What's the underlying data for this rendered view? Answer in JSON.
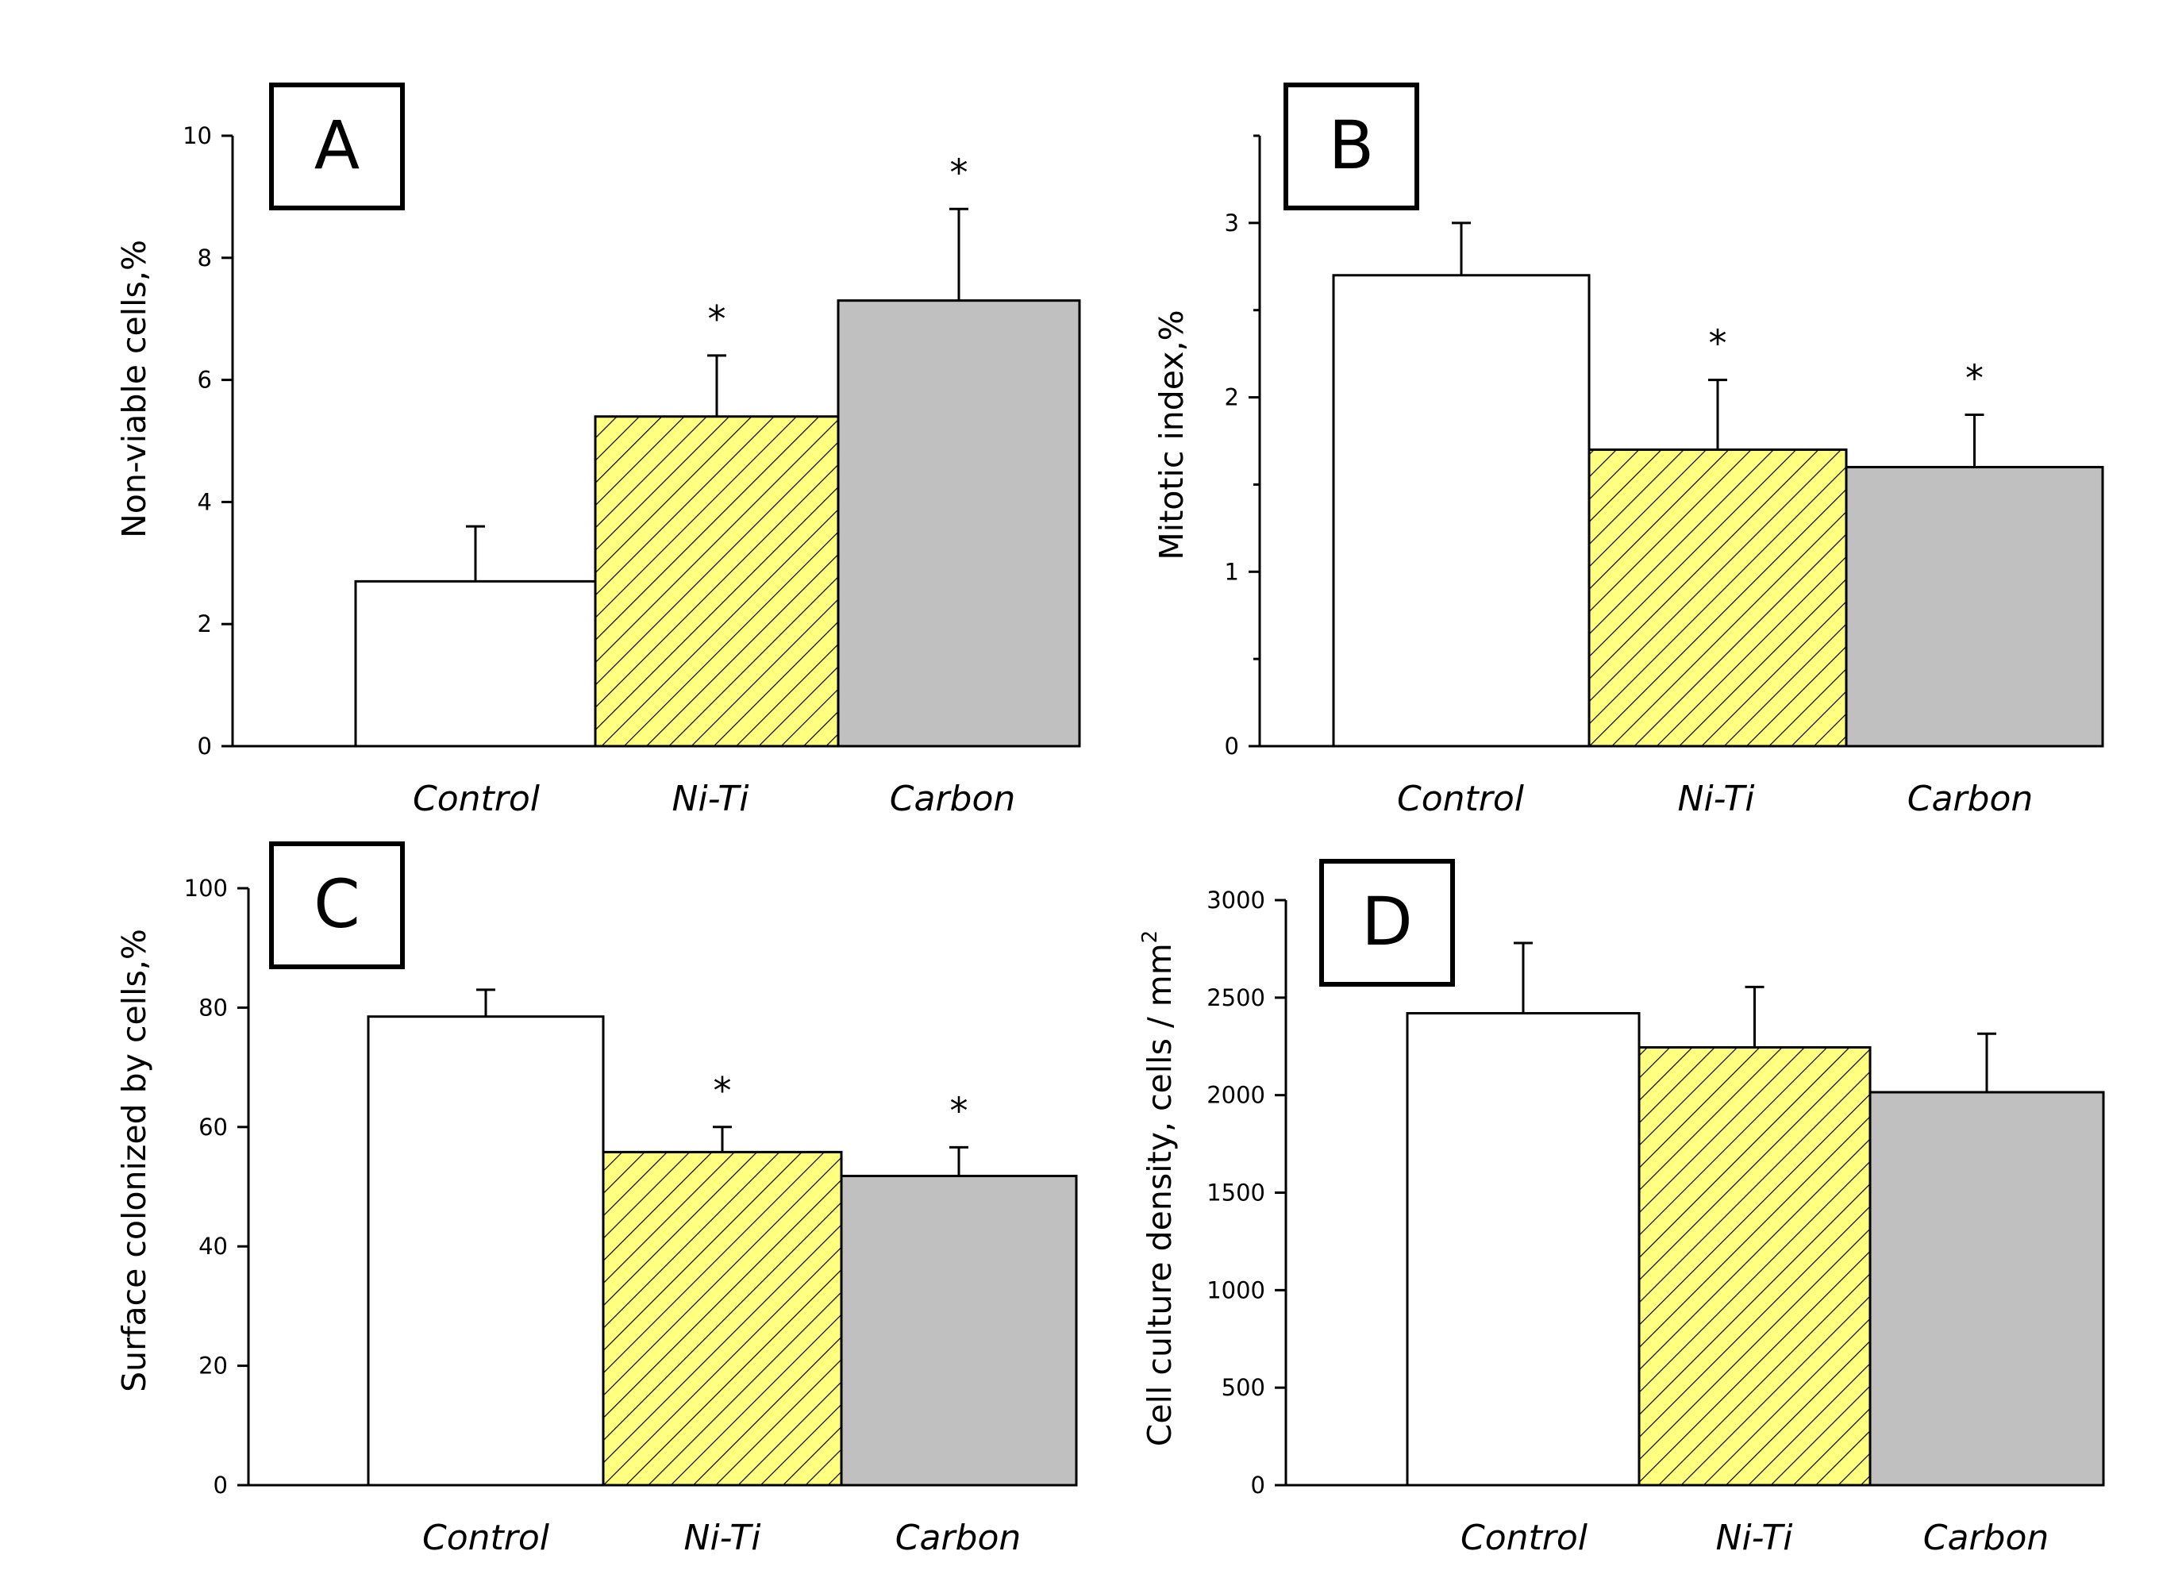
{
  "chart_data": [
    {
      "type": "bar",
      "panel": "A",
      "ylabel": "Non-viable cells,%",
      "categories": [
        "Control",
        "Ni-Ti",
        "Carbon"
      ],
      "values": [
        2.7,
        5.4,
        7.3
      ],
      "errors": [
        0.9,
        1.0,
        1.5
      ],
      "significance": [
        "",
        "*",
        "*"
      ],
      "ylim": [
        0,
        10
      ],
      "yticks": [
        0,
        2,
        4,
        6,
        8,
        10
      ],
      "ytick_labels": [
        "0",
        "2",
        "4",
        "6",
        "8",
        "10"
      ]
    },
    {
      "type": "bar",
      "panel": "B",
      "ylabel": "Mitotic index,%",
      "categories": [
        "Control",
        "Ni-Ti",
        "Carbon"
      ],
      "values": [
        2.7,
        1.7,
        1.6
      ],
      "errors": [
        0.3,
        0.4,
        0.3
      ],
      "significance": [
        "",
        "*",
        "*"
      ],
      "ylim": [
        0,
        3.5
      ],
      "yticks": [
        0,
        1,
        2,
        3
      ],
      "ytick_labels": [
        "0",
        "1",
        "2",
        "3"
      ],
      "minor_yticks": [
        0.5,
        1.5,
        2.5,
        3.5
      ]
    },
    {
      "type": "bar",
      "panel": "C",
      "ylabel": "Surface colonized by cells,%",
      "categories": [
        "Control",
        "Ni-Ti",
        "Carbon"
      ],
      "values": [
        78.5,
        55.8,
        51.8
      ],
      "errors": [
        4.5,
        4.2,
        4.8
      ],
      "significance": [
        "",
        "*",
        "*"
      ],
      "ylim": [
        0,
        100
      ],
      "yticks": [
        0,
        20,
        40,
        60,
        80,
        100
      ],
      "ytick_labels": [
        "0",
        "20",
        "40",
        "60",
        "80",
        "100"
      ]
    },
    {
      "type": "bar",
      "panel": "D",
      "ylabel": "Cell culture density, cells / mm",
      "ylabel_sup": "2",
      "categories": [
        "Control",
        "Ni-Ti",
        "Carbon"
      ],
      "values": [
        2420,
        2245,
        2015
      ],
      "errors": [
        360,
        310,
        300
      ],
      "significance": [
        "",
        "",
        ""
      ],
      "ylim": [
        0,
        3000
      ],
      "yticks": [
        0,
        500,
        1000,
        1500,
        2000,
        2500,
        3000
      ],
      "ytick_labels": [
        "0",
        "500",
        "1000",
        "1500",
        "2000",
        "2500",
        "3000"
      ]
    }
  ],
  "colors": {
    "control_fill": "#ffffff",
    "niti_fill": "#ffff80",
    "niti_hatch": "#000000",
    "carbon_fill": "#c0c0c0",
    "axis": "#000000"
  }
}
